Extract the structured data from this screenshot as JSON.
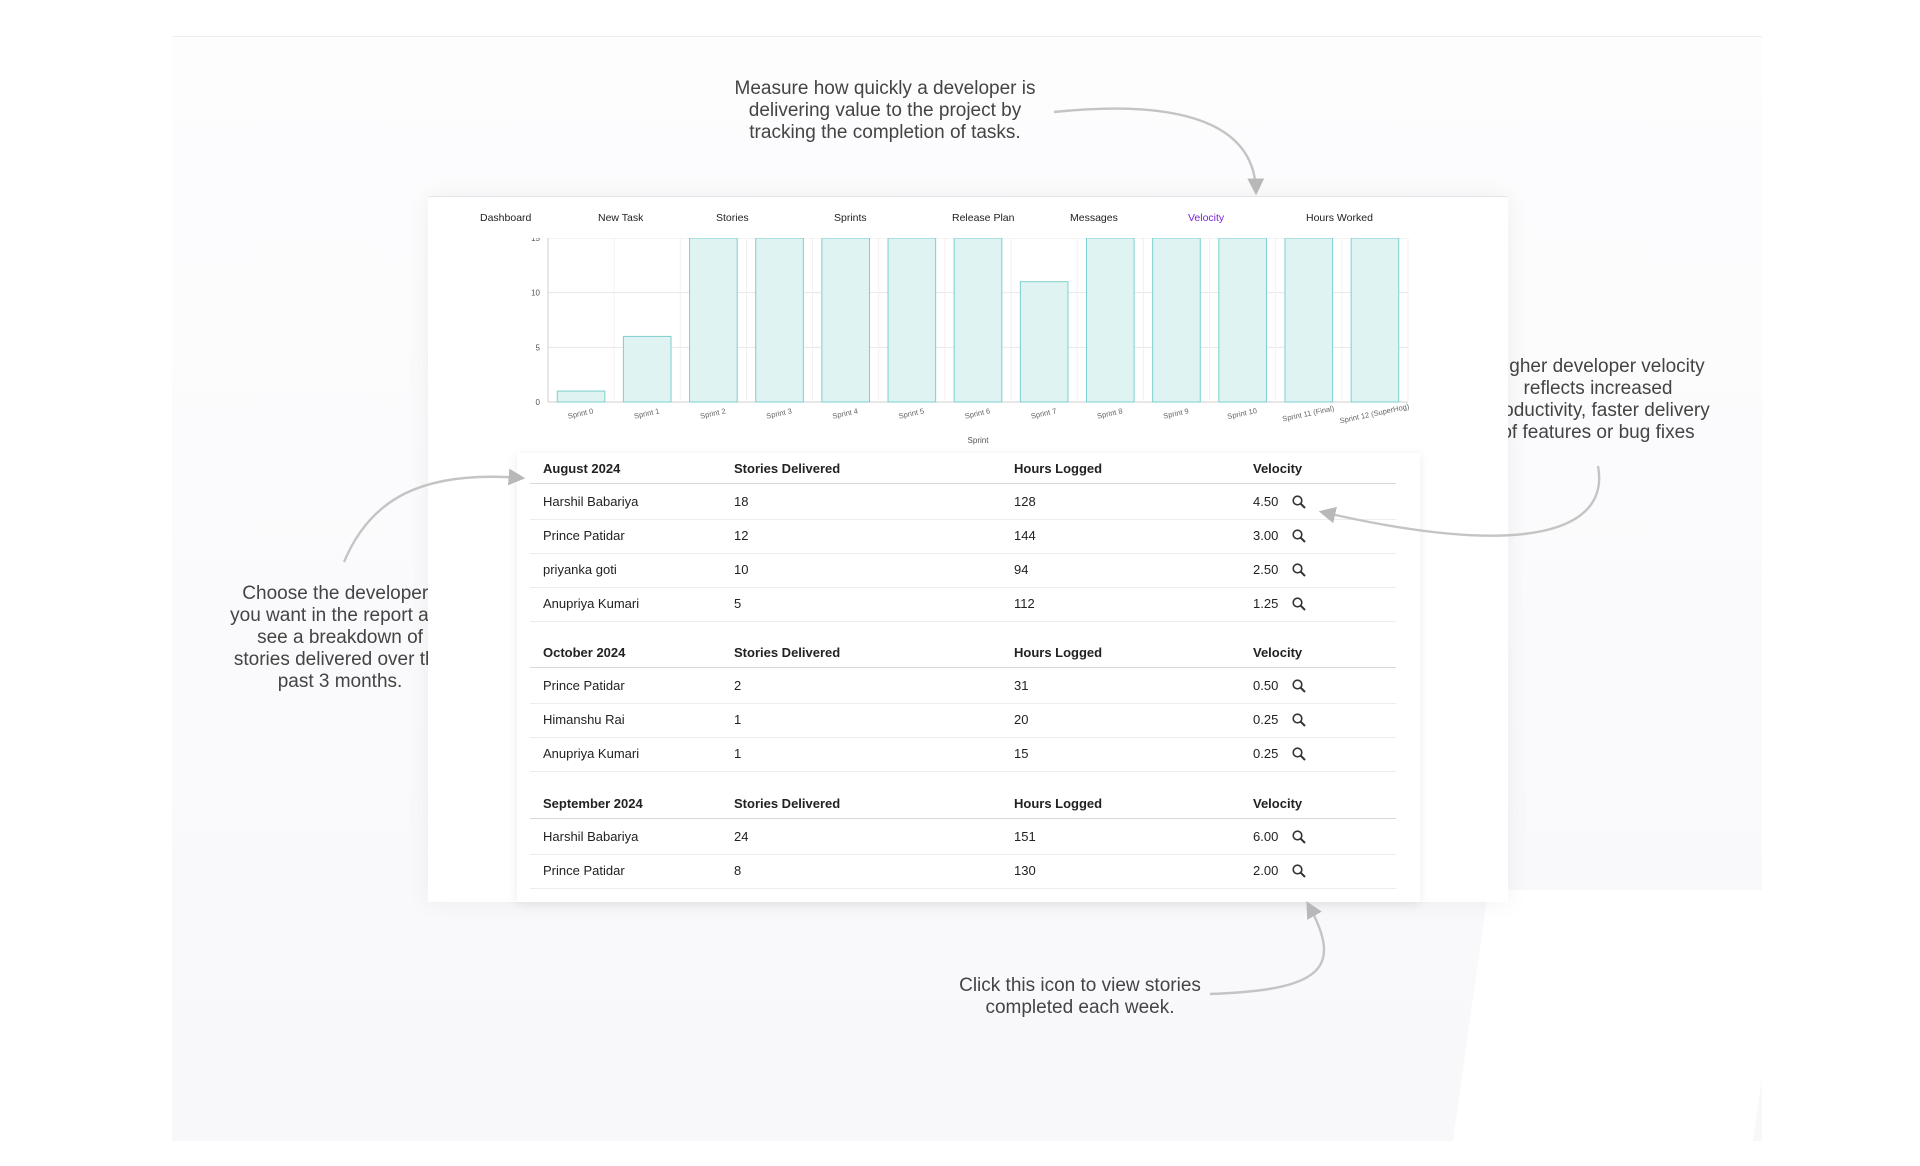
{
  "annotations": {
    "top": "Measure how quickly a developer is\ndelivering value to the project by\ntracking the completion of tasks.",
    "right": "Higher developer velocity\nreflects increased\nproductivity, faster delivery\nof features or bug fixes",
    "left": "Choose the developers\nyou want in the report and\nsee a breakdown of\nstories delivered over the\npast 3 months.",
    "bottom": "Click this icon to view stories\ncompleted each week."
  },
  "nav": {
    "items": [
      "Dashboard",
      "New Task",
      "Stories",
      "Sprints",
      "Release Plan",
      "Messages",
      "Velocity",
      "Hours Worked"
    ],
    "active_index": 6,
    "active_color": "#7a25d8"
  },
  "chart_data": {
    "type": "bar",
    "categories": [
      "Sprint 0",
      "Sprint 1",
      "Sprint 2",
      "Sprint 3",
      "Sprint 4",
      "Sprint 5",
      "Sprint 6",
      "Sprint 7",
      "Sprint 8",
      "Sprint 9",
      "Sprint 10",
      "Sprint 11 (Final)",
      "Sprint 12 (SuperHog)"
    ],
    "values": [
      1,
      6,
      15,
      15,
      15,
      15,
      15,
      11,
      15,
      15,
      15,
      15,
      15
    ],
    "xlabel": "Sprint",
    "ylabel": "",
    "ylim": [
      0,
      15
    ],
    "yticks": [
      0,
      5,
      10,
      15
    ],
    "grid": true,
    "bar_fill": "#dff3f3",
    "bar_stroke": "#7ccfcf"
  },
  "tables": [
    {
      "month": "August 2024",
      "columns": [
        "Stories Delivered",
        "Hours Logged",
        "Velocity"
      ],
      "rows": [
        {
          "name": "Harshil Babariya",
          "stories": "18",
          "hours": "128",
          "velocity": "4.50"
        },
        {
          "name": "Prince Patidar",
          "stories": "12",
          "hours": "144",
          "velocity": "3.00"
        },
        {
          "name": "priyanka goti",
          "stories": "10",
          "hours": "94",
          "velocity": "2.50"
        },
        {
          "name": "Anupriya Kumari",
          "stories": "5",
          "hours": "112",
          "velocity": "1.25"
        }
      ]
    },
    {
      "month": "October 2024",
      "columns": [
        "Stories Delivered",
        "Hours Logged",
        "Velocity"
      ],
      "rows": [
        {
          "name": "Prince Patidar",
          "stories": "2",
          "hours": "31",
          "velocity": "0.50"
        },
        {
          "name": "Himanshu Rai",
          "stories": "1",
          "hours": "20",
          "velocity": "0.25"
        },
        {
          "name": "Anupriya Kumari",
          "stories": "1",
          "hours": "15",
          "velocity": "0.25"
        }
      ]
    },
    {
      "month": "September 2024",
      "columns": [
        "Stories Delivered",
        "Hours Logged",
        "Velocity"
      ],
      "rows": [
        {
          "name": "Harshil Babariya",
          "stories": "24",
          "hours": "151",
          "velocity": "6.00"
        },
        {
          "name": "Prince Patidar",
          "stories": "8",
          "hours": "130",
          "velocity": "2.00"
        }
      ]
    }
  ],
  "icons": {
    "view_stories": "magnifier-icon"
  }
}
